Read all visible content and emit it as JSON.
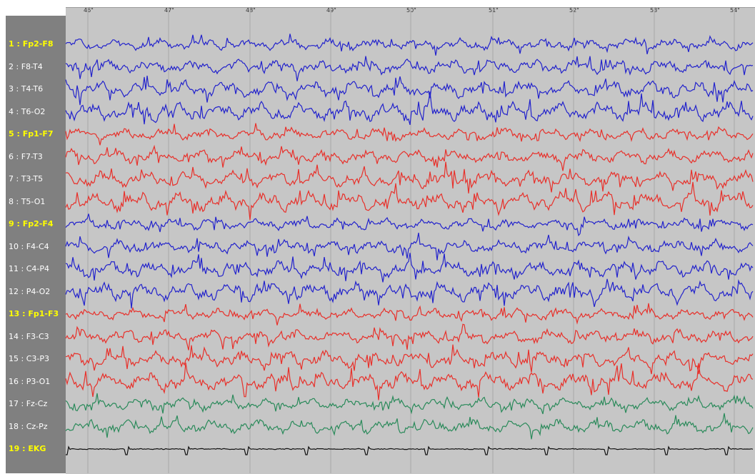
{
  "time_axis": {
    "ticks": [
      "46\"",
      "47\"",
      "48\"",
      "49\"",
      "50\"",
      "51\"",
      "52\"",
      "53\"",
      "54\""
    ]
  },
  "channels": [
    {
      "label": "1 : Fp2-F8",
      "color": "#2222cc",
      "highlight": true
    },
    {
      "label": "2 : F8-T4",
      "color": "#2222cc",
      "highlight": false
    },
    {
      "label": "3 : T4-T6",
      "color": "#2222cc",
      "highlight": false
    },
    {
      "label": "4 : T6-O2",
      "color": "#2222cc",
      "highlight": false
    },
    {
      "label": "5 : Fp1-F7",
      "color": "#e8302a",
      "highlight": true
    },
    {
      "label": "6 : F7-T3",
      "color": "#e8302a",
      "highlight": false
    },
    {
      "label": "7 : T3-T5",
      "color": "#e8302a",
      "highlight": false
    },
    {
      "label": "8 : T5-O1",
      "color": "#e8302a",
      "highlight": false
    },
    {
      "label": "9 : Fp2-F4",
      "color": "#2222cc",
      "highlight": true
    },
    {
      "label": "10 : F4-C4",
      "color": "#2222cc",
      "highlight": false
    },
    {
      "label": "11 : C4-P4",
      "color": "#2222cc",
      "highlight": false
    },
    {
      "label": "12 : P4-O2",
      "color": "#2222cc",
      "highlight": false
    },
    {
      "label": "13 : Fp1-F3",
      "color": "#e8302a",
      "highlight": true
    },
    {
      "label": "14 : F3-C3",
      "color": "#e8302a",
      "highlight": false
    },
    {
      "label": "15 : C3-P3",
      "color": "#e8302a",
      "highlight": false
    },
    {
      "label": "16 : P3-O1",
      "color": "#e8302a",
      "highlight": false
    },
    {
      "label": "17 : Fz-Cz",
      "color": "#2a8a5a",
      "highlight": false
    },
    {
      "label": "18 : Cz-Pz",
      "color": "#2a8a5a",
      "highlight": false
    },
    {
      "label": "19 : EKG",
      "color": "#111111",
      "highlight": true
    }
  ],
  "colors": {
    "background": "#c6c6c6",
    "label_panel": "#808080",
    "gridline": "#a8a8a8",
    "label_highlight": "#ffff00"
  }
}
